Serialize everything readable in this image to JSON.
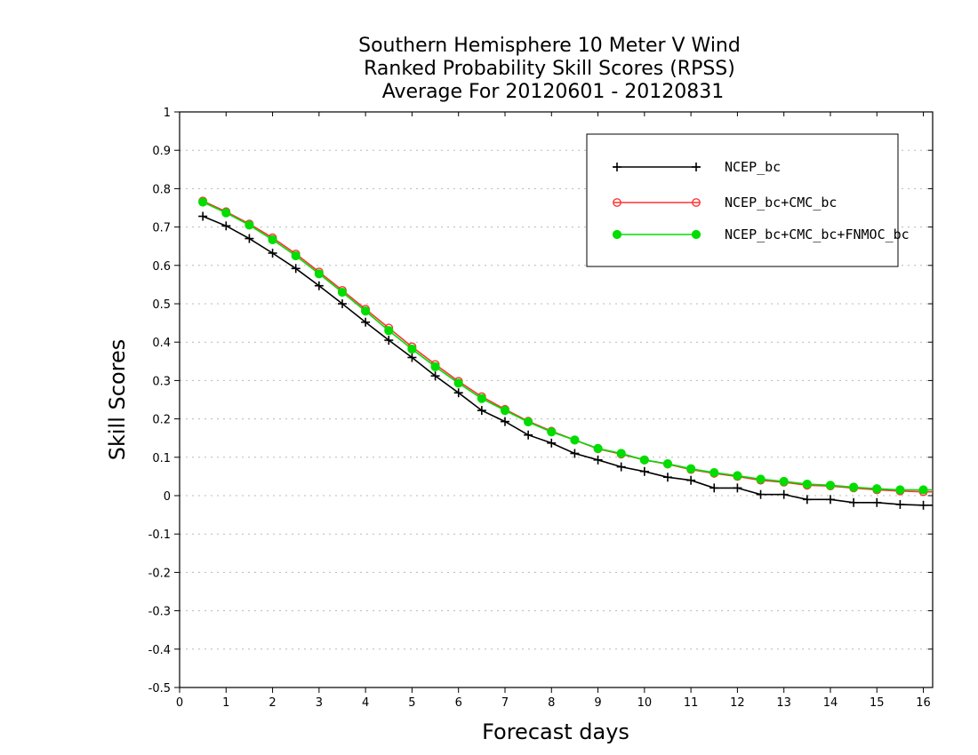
{
  "chart_data": {
    "type": "line",
    "title_lines": [
      "Southern Hemisphere 10 Meter V Wind",
      "Ranked Probability Skill Scores (RPSS)",
      "Average For 20120601 - 20120831"
    ],
    "xlabel": "Forecast days",
    "ylabel": "Skill Scores",
    "xlim": [
      0,
      16.2
    ],
    "ylim": [
      -0.5,
      1
    ],
    "xticks": [
      0,
      1,
      2,
      3,
      4,
      5,
      6,
      7,
      8,
      9,
      10,
      11,
      12,
      13,
      14,
      15,
      16
    ],
    "xtick_labels": [
      "0",
      "1",
      "2",
      "3",
      "4",
      "5",
      "6",
      "7",
      "8",
      "9",
      "10",
      "11",
      "12",
      "13",
      "14",
      "15",
      "16"
    ],
    "yticks": [
      -0.5,
      -0.4,
      -0.3,
      -0.2,
      -0.1,
      0,
      0.1,
      0.2,
      0.3,
      0.4,
      0.5,
      0.6,
      0.7,
      0.8,
      0.9,
      1
    ],
    "ytick_labels": [
      "-0.5",
      "-0.4",
      "-0.3",
      "-0.2",
      "-0.1",
      "0",
      "0.1",
      "0.2",
      "0.3",
      "0.4",
      "0.5",
      "0.6",
      "0.7",
      "0.8",
      "0.9",
      "1"
    ],
    "grid": "horizontal dotted",
    "legend_position": "top-right",
    "x": [
      0.5,
      1,
      1.5,
      2,
      2.5,
      3,
      3.5,
      4,
      4.5,
      5,
      5.5,
      6,
      6.5,
      7,
      7.5,
      8,
      8.5,
      9,
      9.5,
      10,
      10.5,
      11,
      11.5,
      12,
      12.5,
      13,
      13.5,
      14,
      14.5,
      15,
      15.5,
      16,
      16.2
    ],
    "series": [
      {
        "name": "NCEP_bc",
        "color": "#000000",
        "marker": "plus",
        "values": [
          0.728,
          0.703,
          0.67,
          0.632,
          0.592,
          0.547,
          0.5,
          0.452,
          0.405,
          0.36,
          0.312,
          0.268,
          0.222,
          0.193,
          0.158,
          0.137,
          0.11,
          0.093,
          0.075,
          0.063,
          0.048,
          0.04,
          0.02,
          0.02,
          0.003,
          0.003,
          -0.01,
          -0.01,
          -0.018,
          -0.018,
          -0.023,
          -0.025,
          -0.025
        ]
      },
      {
        "name": "NCEP_bc+CMC_bc",
        "color": "#ff3333",
        "marker": "open-circle",
        "values": [
          0.768,
          0.74,
          0.708,
          0.672,
          0.63,
          0.583,
          0.535,
          0.486,
          0.437,
          0.388,
          0.342,
          0.298,
          0.258,
          0.225,
          0.194,
          0.168,
          0.145,
          0.122,
          0.108,
          0.093,
          0.082,
          0.068,
          0.058,
          0.05,
          0.04,
          0.035,
          0.027,
          0.025,
          0.02,
          0.015,
          0.012,
          0.01,
          0.01
        ]
      },
      {
        "name": "NCEP_bc+CMC_bc+FNMOC_bc",
        "color": "#00dd00",
        "marker": "filled-circle",
        "values": [
          0.765,
          0.737,
          0.705,
          0.667,
          0.625,
          0.578,
          0.53,
          0.481,
          0.43,
          0.382,
          0.336,
          0.293,
          0.253,
          0.222,
          0.192,
          0.166,
          0.145,
          0.123,
          0.11,
          0.093,
          0.083,
          0.07,
          0.06,
          0.052,
          0.043,
          0.037,
          0.03,
          0.027,
          0.022,
          0.018,
          0.015,
          0.015,
          0.015
        ]
      }
    ]
  }
}
